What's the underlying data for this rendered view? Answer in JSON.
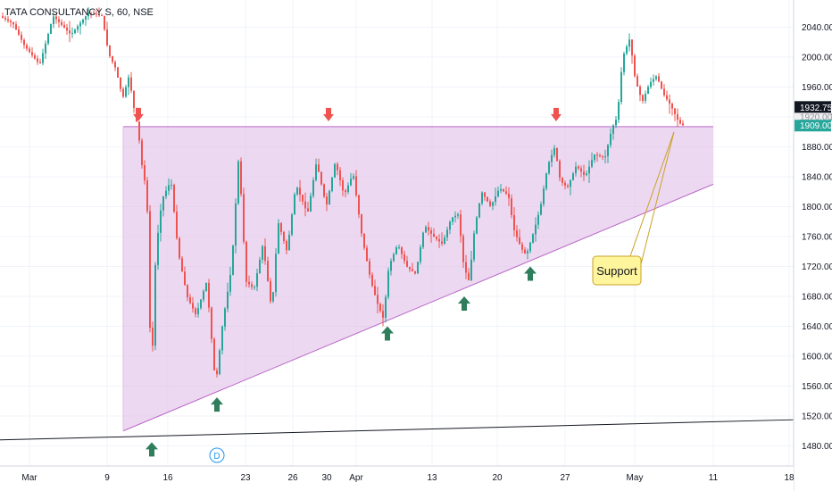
{
  "chart_data": {
    "type": "candlestick",
    "title": "TATA CONSULTANCY S, 60, NSE",
    "ylim": [
      1460,
      2070
    ],
    "price_ticks": [
      1480,
      1520,
      1560,
      1600,
      1640,
      1680,
      1720,
      1760,
      1800,
      1840,
      1880,
      1920,
      1960,
      2000,
      2040
    ],
    "date_ticks": [
      "Mar",
      "9",
      "16",
      "23",
      "26",
      "30",
      "Apr",
      "13",
      "20",
      "27",
      "May",
      "11",
      "18"
    ],
    "current_price": "1909.00",
    "last_close": "1932.75",
    "hidden_label": "1920.00",
    "dividend_marker": "D",
    "annotation": "Support",
    "pattern": "ascending triangle",
    "resistance_level": 1907,
    "support_line": [
      {
        "date": "Mar 12",
        "price": 1500
      },
      {
        "date": "May 11",
        "price": 1830
      }
    ],
    "trendline": [
      {
        "date": "Feb 27",
        "price": 1488
      },
      {
        "date": "May 19",
        "price": 1515
      }
    ],
    "top_markers": [
      "Mar 12",
      "Mar 31",
      "Apr 24"
    ],
    "bottom_markers": [
      "Mar 13",
      "Mar 20",
      "Apr 6",
      "Apr 16",
      "Apr 23"
    ],
    "path": [
      [
        0,
        2055
      ],
      [
        15,
        2045
      ],
      [
        28,
        2015
      ],
      [
        45,
        1990
      ],
      [
        60,
        2055
      ],
      [
        80,
        2030
      ],
      [
        100,
        2060
      ],
      [
        115,
        2055
      ],
      [
        122,
        2005
      ],
      [
        130,
        1985
      ],
      [
        138,
        1945
      ],
      [
        145,
        1975
      ],
      [
        150,
        1935
      ],
      [
        155,
        1905
      ],
      [
        160,
        1850
      ],
      [
        165,
        1820
      ],
      [
        170,
        1560
      ],
      [
        175,
        1740
      ],
      [
        182,
        1810
      ],
      [
        192,
        1835
      ],
      [
        200,
        1740
      ],
      [
        210,
        1680
      ],
      [
        220,
        1655
      ],
      [
        232,
        1700
      ],
      [
        242,
        1560
      ],
      [
        250,
        1645
      ],
      [
        260,
        1720
      ],
      [
        268,
        1870
      ],
      [
        276,
        1700
      ],
      [
        285,
        1690
      ],
      [
        295,
        1750
      ],
      [
        305,
        1660
      ],
      [
        312,
        1780
      ],
      [
        322,
        1740
      ],
      [
        332,
        1830
      ],
      [
        345,
        1790
      ],
      [
        355,
        1860
      ],
      [
        366,
        1800
      ],
      [
        376,
        1860
      ],
      [
        386,
        1815
      ],
      [
        396,
        1845
      ],
      [
        406,
        1760
      ],
      [
        416,
        1700
      ],
      [
        424,
        1668
      ],
      [
        430,
        1650
      ],
      [
        436,
        1720
      ],
      [
        446,
        1750
      ],
      [
        456,
        1720
      ],
      [
        466,
        1710
      ],
      [
        476,
        1775
      ],
      [
        486,
        1760
      ],
      [
        496,
        1750
      ],
      [
        506,
        1785
      ],
      [
        514,
        1790
      ],
      [
        520,
        1720
      ],
      [
        526,
        1700
      ],
      [
        532,
        1770
      ],
      [
        540,
        1820
      ],
      [
        550,
        1800
      ],
      [
        560,
        1825
      ],
      [
        570,
        1815
      ],
      [
        576,
        1770
      ],
      [
        584,
        1745
      ],
      [
        590,
        1735
      ],
      [
        598,
        1765
      ],
      [
        606,
        1800
      ],
      [
        614,
        1855
      ],
      [
        622,
        1880
      ],
      [
        628,
        1835
      ],
      [
        636,
        1825
      ],
      [
        646,
        1855
      ],
      [
        656,
        1840
      ],
      [
        666,
        1870
      ],
      [
        678,
        1865
      ],
      [
        686,
        1905
      ],
      [
        692,
        1920
      ],
      [
        698,
        2000
      ],
      [
        706,
        2025
      ],
      [
        712,
        1970
      ],
      [
        720,
        1940
      ],
      [
        728,
        1965
      ],
      [
        736,
        1975
      ],
      [
        744,
        1950
      ],
      [
        752,
        1935
      ],
      [
        760,
        1915
      ],
      [
        764,
        1909
      ]
    ]
  }
}
